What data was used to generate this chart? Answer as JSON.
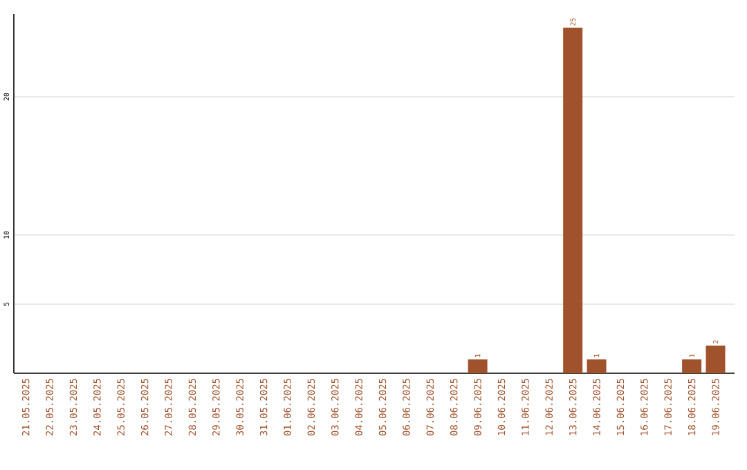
{
  "chart_data": {
    "type": "bar",
    "categories": [
      "21.05.2025",
      "22.05.2025",
      "23.05.2025",
      "24.05.2025",
      "25.05.2025",
      "26.05.2025",
      "27.05.2025",
      "28.05.2025",
      "29.05.2025",
      "30.05.2025",
      "31.05.2025",
      "01.06.2025",
      "02.06.2025",
      "03.06.2025",
      "04.06.2025",
      "05.06.2025",
      "06.06.2025",
      "07.06.2025",
      "08.06.2025",
      "09.06.2025",
      "10.06.2025",
      "11.06.2025",
      "12.06.2025",
      "13.06.2025",
      "14.06.2025",
      "15.06.2025",
      "16.06.2025",
      "17.06.2025",
      "18.06.2025",
      "19.06.2025"
    ],
    "values": [
      0,
      0,
      0,
      0,
      0,
      0,
      0,
      0,
      0,
      0,
      0,
      0,
      0,
      0,
      0,
      0,
      0,
      0,
      0,
      1,
      0,
      0,
      0,
      25,
      1,
      0,
      0,
      0,
      1,
      2
    ],
    "value_labels": [
      null,
      null,
      null,
      null,
      null,
      null,
      null,
      null,
      null,
      null,
      null,
      null,
      null,
      null,
      null,
      null,
      null,
      null,
      null,
      "1",
      null,
      null,
      null,
      "25",
      "1",
      null,
      null,
      null,
      "1",
      "2"
    ],
    "color": "#a0522d",
    "ylim": [
      0,
      26
    ],
    "yticks": [
      5,
      10,
      20
    ],
    "grid": "y"
  }
}
